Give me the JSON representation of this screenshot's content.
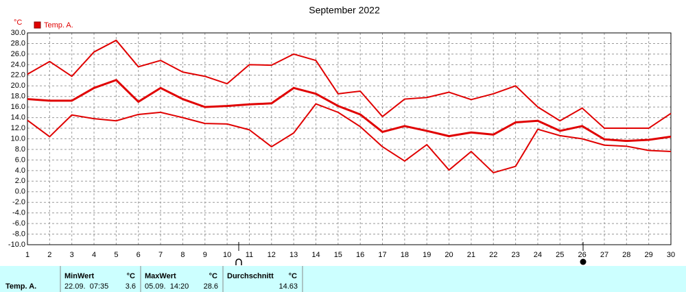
{
  "chart_data": {
    "type": "line",
    "title": "September 2022",
    "y_unit": "°C",
    "x": [
      1,
      2,
      3,
      4,
      5,
      6,
      7,
      8,
      9,
      10,
      11,
      12,
      13,
      14,
      15,
      16,
      17,
      18,
      19,
      20,
      21,
      22,
      23,
      24,
      25,
      26,
      27,
      28,
      29,
      30
    ],
    "series": [
      {
        "name": "Temp. A.",
        "color": "#e00000",
        "values": [
          17.5,
          17.2,
          17.2,
          19.6,
          21.1,
          17.0,
          19.6,
          17.5,
          16.0,
          16.2,
          16.5,
          16.7,
          19.6,
          18.5,
          16.2,
          14.6,
          11.3,
          12.4,
          11.5,
          10.5,
          11.2,
          10.8,
          13.1,
          13.4,
          11.5,
          12.4,
          9.9,
          9.6,
          9.8,
          10.4
        ],
        "max": [
          22.2,
          24.6,
          21.8,
          26.4,
          28.6,
          23.6,
          24.8,
          22.6,
          21.8,
          20.4,
          24.0,
          23.9,
          26.0,
          24.8,
          18.5,
          19.0,
          14.2,
          17.5,
          17.8,
          18.8,
          17.4,
          18.5,
          20.0,
          16.0,
          13.4,
          15.8,
          12.0,
          12.0,
          12.0,
          14.8
        ],
        "min": [
          13.5,
          10.4,
          14.5,
          13.8,
          13.4,
          14.6,
          15.0,
          14.0,
          12.9,
          12.8,
          11.7,
          8.5,
          11.1,
          16.6,
          15.0,
          12.3,
          8.5,
          5.8,
          8.9,
          4.1,
          7.6,
          3.6,
          4.8,
          11.8,
          10.6,
          10.0,
          8.8,
          8.6,
          7.8,
          7.6
        ]
      }
    ],
    "xlim": [
      1,
      30
    ],
    "xticks": [
      1,
      2,
      3,
      4,
      5,
      6,
      7,
      8,
      9,
      10,
      11,
      12,
      13,
      14,
      15,
      16,
      17,
      18,
      19,
      20,
      21,
      22,
      23,
      24,
      25,
      26,
      27,
      28,
      29,
      30
    ],
    "ylim": [
      -10,
      30
    ],
    "yticks": [
      {
        "value": 30,
        "label": "30.0"
      },
      {
        "value": 28,
        "label": "28.0"
      },
      {
        "value": 26,
        "label": "26.0"
      },
      {
        "value": 24,
        "label": "24.0"
      },
      {
        "value": 22,
        "label": "22.0"
      },
      {
        "value": 20,
        "label": "20.0"
      },
      {
        "value": 18,
        "label": "18.0"
      },
      {
        "value": 16,
        "label": "16.0"
      },
      {
        "value": 14,
        "label": "14.0"
      },
      {
        "value": 12,
        "label": "12.0"
      },
      {
        "value": 10,
        "label": "10.0"
      },
      {
        "value": 8,
        "label": "8.0"
      },
      {
        "value": 6,
        "label": "6.0"
      },
      {
        "value": 4,
        "label": "4.0"
      },
      {
        "value": 2,
        "label": "2.0"
      },
      {
        "value": 0,
        "label": "0.0"
      },
      {
        "value": -2,
        "label": "-2.0"
      },
      {
        "value": -4,
        "label": "-4.0"
      },
      {
        "value": -6,
        "label": "-6.0"
      },
      {
        "value": -8,
        "label": "-8.0"
      },
      {
        "value": -10,
        "label": "-10.0"
      }
    ],
    "grid": true,
    "legend": "top-left"
  },
  "stats": {
    "row_label": "Temp. A.",
    "columns": [
      {
        "header": "MinWert",
        "unit": "°C",
        "time": "22.09.  07:35",
        "value": 3.6
      },
      {
        "header": "MaxWert",
        "unit": "°C",
        "time": "05.09.  14:20",
        "value": 28.6
      },
      {
        "header": "Durchschnitt",
        "unit": "°C",
        "value": 14.63
      }
    ]
  }
}
